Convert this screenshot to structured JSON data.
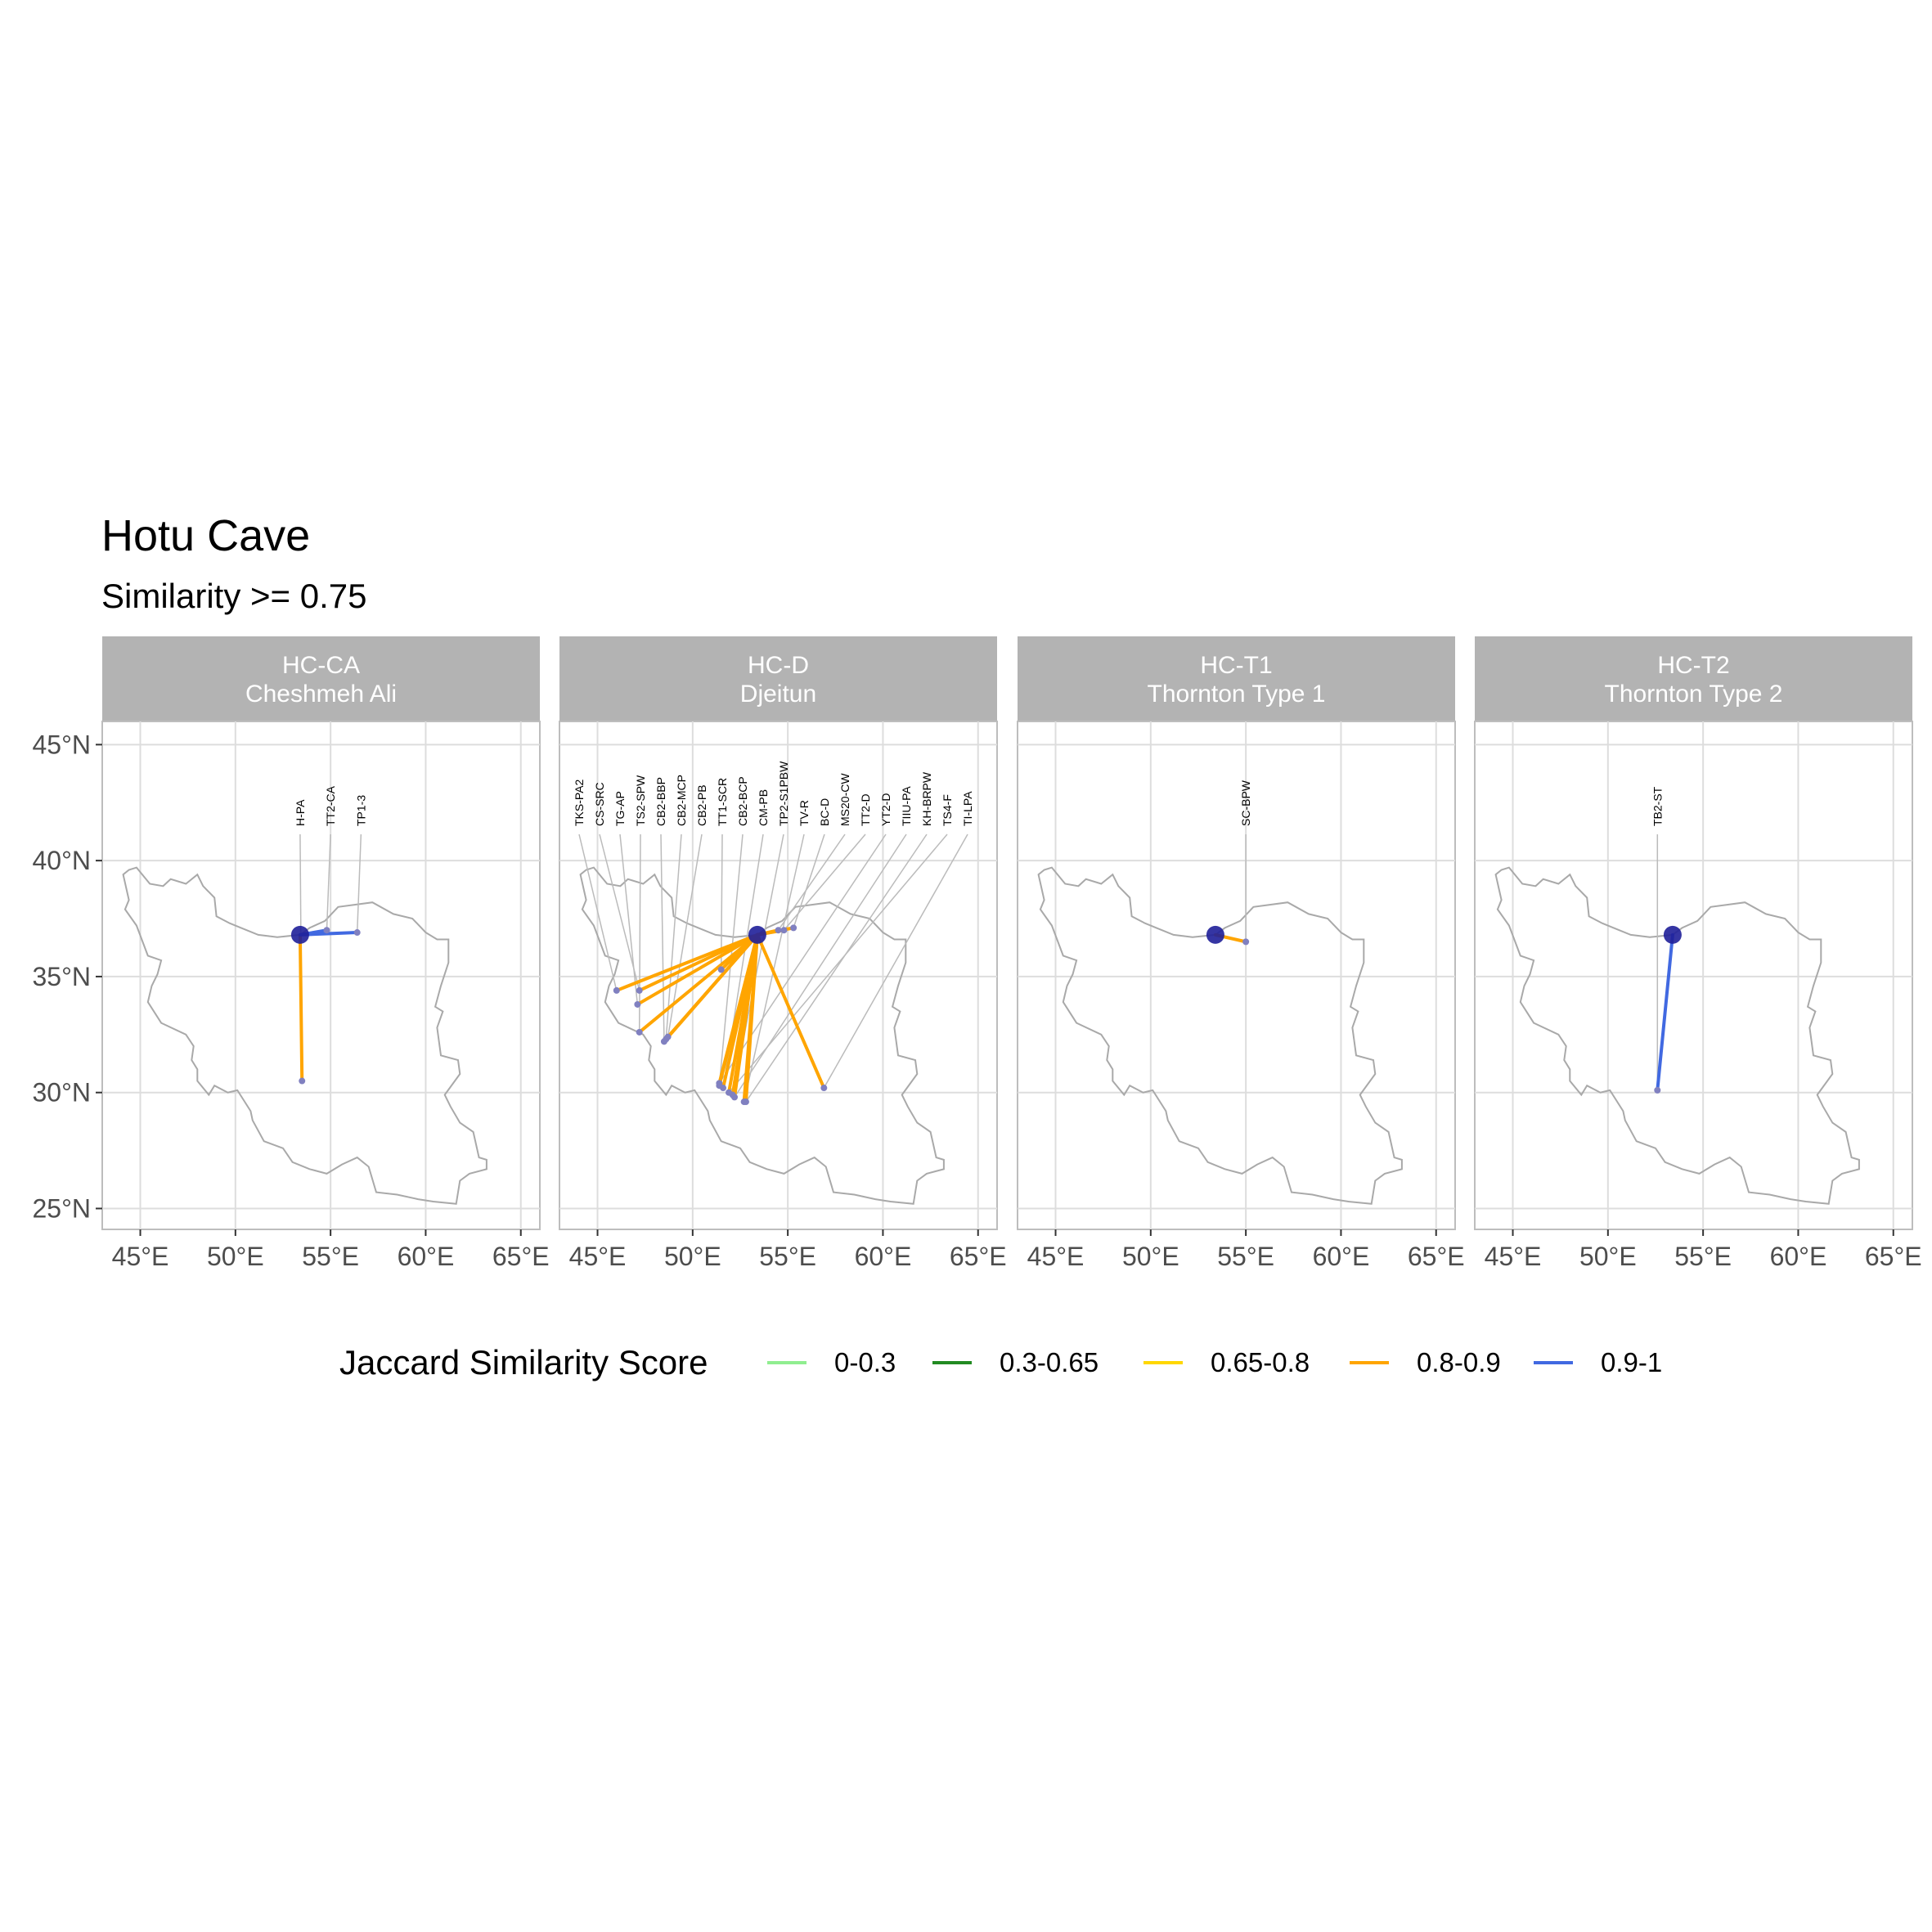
{
  "title": "Hotu Cave",
  "subtitle": "Similarity >= 0.75",
  "legend": {
    "title": "Jaccard Similarity Score",
    "items": [
      {
        "label": "0-0.3",
        "color": "#90EE90"
      },
      {
        "label": "0.3-0.65",
        "color": "#228B22"
      },
      {
        "label": "0.65-0.8",
        "color": "#FFD700"
      },
      {
        "label": "0.8-0.9",
        "color": "#FFA500"
      },
      {
        "label": "0.9-1",
        "color": "#4169E1"
      }
    ]
  },
  "axes": {
    "x_ticks": [
      "45°E",
      "50°E",
      "55°E",
      "60°E",
      "65°E"
    ],
    "x_tick_values": [
      45,
      50,
      55,
      60,
      65
    ],
    "y_ticks": [
      "25°N",
      "30°N",
      "35°N",
      "40°N",
      "45°N"
    ],
    "y_tick_values": [
      25,
      30,
      35,
      40,
      45
    ],
    "xlim": [
      43,
      66
    ],
    "ylim": [
      24.1,
      46.0
    ]
  },
  "colors": {
    "hub": "#1F1F99",
    "site_point": "#8080C0",
    "outline": "#A9A9A9",
    "strip_bg": "#B3B3B3",
    "grid": "#DDDDDD",
    "leader": "#BBBBBB"
  },
  "chart_data": {
    "type": "map",
    "hub": {
      "name": "Hotu Cave",
      "lon": 53.4,
      "lat": 36.8
    },
    "panels": [
      {
        "code": "HC-CA",
        "name": "Cheshmeh Ali",
        "links": [
          {
            "label": "H-PA",
            "lon": 53.5,
            "lat": 30.5,
            "color": "#FFA500"
          },
          {
            "label": "TT2-CA",
            "lon": 54.8,
            "lat": 37.0,
            "color": "#4169E1"
          },
          {
            "label": "TP1-3",
            "lon": 56.4,
            "lat": 36.9,
            "color": "#4169E1"
          }
        ]
      },
      {
        "code": "HC-D",
        "name": "Djeitun",
        "links": [
          {
            "label": "TKS-PA2",
            "lon": 46.0,
            "lat": 34.4,
            "color": "#FFA500"
          },
          {
            "label": "CS-SRC",
            "lon": 47.2,
            "lat": 34.4,
            "color": "#FFA500"
          },
          {
            "label": "TG-AP",
            "lon": 47.1,
            "lat": 33.8,
            "color": "#FFA500"
          },
          {
            "label": "TS2-SPW",
            "lon": 47.2,
            "lat": 32.6,
            "color": "#FFA500"
          },
          {
            "label": "CB2-BBP",
            "lon": 48.5,
            "lat": 32.2,
            "color": "#FFA500"
          },
          {
            "label": "CB2-MCP",
            "lon": 48.6,
            "lat": 32.3,
            "color": "#FFA500"
          },
          {
            "label": "CB2-PB",
            "lon": 48.7,
            "lat": 32.4,
            "color": "#FFA500"
          },
          {
            "label": "TT1-SCR",
            "lon": 51.5,
            "lat": 35.3,
            "color": "#FFA500"
          },
          {
            "label": "CB2-BCP",
            "lon": 51.4,
            "lat": 30.3,
            "color": "#FFA500"
          },
          {
            "label": "CM-PB",
            "lon": 51.6,
            "lat": 30.2,
            "color": "#FFA500"
          },
          {
            "label": "TP2-S1PBW",
            "lon": 52.1,
            "lat": 29.9,
            "color": "#FFA500"
          },
          {
            "label": "TV-R",
            "lon": 52.7,
            "lat": 29.6,
            "color": "#FFA500"
          },
          {
            "label": "BC-D",
            "lon": 55.3,
            "lat": 37.1,
            "color": "#FFA500"
          },
          {
            "label": "MS20-CW",
            "lon": 54.5,
            "lat": 37.0,
            "color": "#FFA500"
          },
          {
            "label": "TT2-D",
            "lon": 54.8,
            "lat": 37.0,
            "color": "#FFA500"
          },
          {
            "label": "YT2-D",
            "lon": 51.4,
            "lat": 30.4,
            "color": "#FFA500"
          },
          {
            "label": "TIIU-PA",
            "lon": 52.2,
            "lat": 29.8,
            "color": "#FFA500"
          },
          {
            "label": "KH-BRPW",
            "lon": 52.8,
            "lat": 29.6,
            "color": "#FFA500"
          },
          {
            "label": "TS4-F",
            "lon": 51.9,
            "lat": 30.0,
            "color": "#FFA500"
          },
          {
            "label": "TI-LPA",
            "lon": 56.9,
            "lat": 30.2,
            "color": "#FFA500"
          }
        ]
      },
      {
        "code": "HC-T1",
        "name": "Thornton Type 1",
        "links": [
          {
            "label": "SC-BPW",
            "lon": 55.0,
            "lat": 36.5,
            "color": "#FFA500"
          }
        ]
      },
      {
        "code": "HC-T2",
        "name": "Thornton Type 2",
        "links": [
          {
            "label": "TB2-ST",
            "lon": 52.6,
            "lat": 30.1,
            "color": "#4169E1"
          }
        ]
      }
    ]
  }
}
